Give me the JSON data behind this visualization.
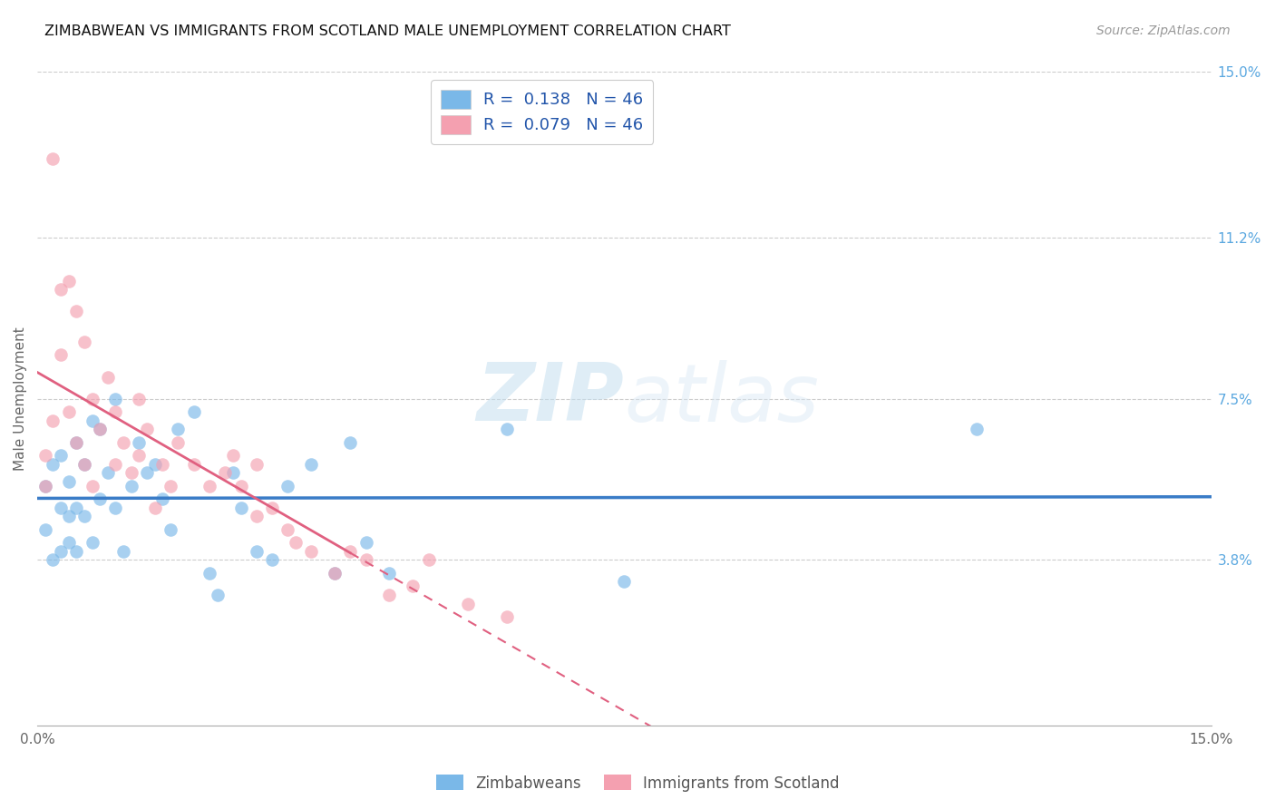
{
  "title": "ZIMBABWEAN VS IMMIGRANTS FROM SCOTLAND MALE UNEMPLOYMENT CORRELATION CHART",
  "source": "Source: ZipAtlas.com",
  "ylabel": "Male Unemployment",
  "x_min": 0.0,
  "x_max": 0.15,
  "y_min": 0.0,
  "y_max": 0.15,
  "y_ticks": [
    0.038,
    0.075,
    0.112,
    0.15
  ],
  "y_tick_labels": [
    "3.8%",
    "7.5%",
    "11.2%",
    "15.0%"
  ],
  "color_blue": "#7ab8e8",
  "color_pink": "#f4a0b0",
  "color_blue_line": "#3a7cc7",
  "color_pink_line": "#e06080",
  "watermark_zip": "ZIP",
  "watermark_atlas": "atlas",
  "legend_label_1": "Zimbabweans",
  "legend_label_2": "Immigrants from Scotland",
  "zimbabwean_x": [
    0.001,
    0.001,
    0.002,
    0.002,
    0.003,
    0.003,
    0.003,
    0.004,
    0.004,
    0.004,
    0.005,
    0.005,
    0.005,
    0.006,
    0.006,
    0.007,
    0.007,
    0.008,
    0.008,
    0.009,
    0.01,
    0.01,
    0.011,
    0.012,
    0.013,
    0.014,
    0.015,
    0.016,
    0.017,
    0.018,
    0.02,
    0.022,
    0.023,
    0.025,
    0.026,
    0.028,
    0.03,
    0.032,
    0.035,
    0.038,
    0.04,
    0.042,
    0.045,
    0.06,
    0.075,
    0.12
  ],
  "zimbabwean_y": [
    0.055,
    0.045,
    0.06,
    0.038,
    0.062,
    0.05,
    0.04,
    0.056,
    0.048,
    0.042,
    0.065,
    0.05,
    0.04,
    0.06,
    0.048,
    0.07,
    0.042,
    0.068,
    0.052,
    0.058,
    0.075,
    0.05,
    0.04,
    0.055,
    0.065,
    0.058,
    0.06,
    0.052,
    0.045,
    0.068,
    0.072,
    0.035,
    0.03,
    0.058,
    0.05,
    0.04,
    0.038,
    0.055,
    0.06,
    0.035,
    0.065,
    0.042,
    0.035,
    0.068,
    0.033,
    0.068
  ],
  "scotland_x": [
    0.001,
    0.001,
    0.002,
    0.002,
    0.003,
    0.003,
    0.004,
    0.004,
    0.005,
    0.005,
    0.006,
    0.006,
    0.007,
    0.007,
    0.008,
    0.009,
    0.01,
    0.01,
    0.011,
    0.012,
    0.013,
    0.013,
    0.014,
    0.015,
    0.016,
    0.017,
    0.018,
    0.02,
    0.022,
    0.024,
    0.025,
    0.026,
    0.028,
    0.03,
    0.032,
    0.033,
    0.035,
    0.038,
    0.04,
    0.042,
    0.045,
    0.048,
    0.05,
    0.055,
    0.06,
    0.028
  ],
  "scotland_y": [
    0.062,
    0.055,
    0.13,
    0.07,
    0.1,
    0.085,
    0.102,
    0.072,
    0.095,
    0.065,
    0.088,
    0.06,
    0.075,
    0.055,
    0.068,
    0.08,
    0.072,
    0.06,
    0.065,
    0.058,
    0.075,
    0.062,
    0.068,
    0.05,
    0.06,
    0.055,
    0.065,
    0.06,
    0.055,
    0.058,
    0.062,
    0.055,
    0.048,
    0.05,
    0.045,
    0.042,
    0.04,
    0.035,
    0.04,
    0.038,
    0.03,
    0.032,
    0.038,
    0.028,
    0.025,
    0.06
  ]
}
